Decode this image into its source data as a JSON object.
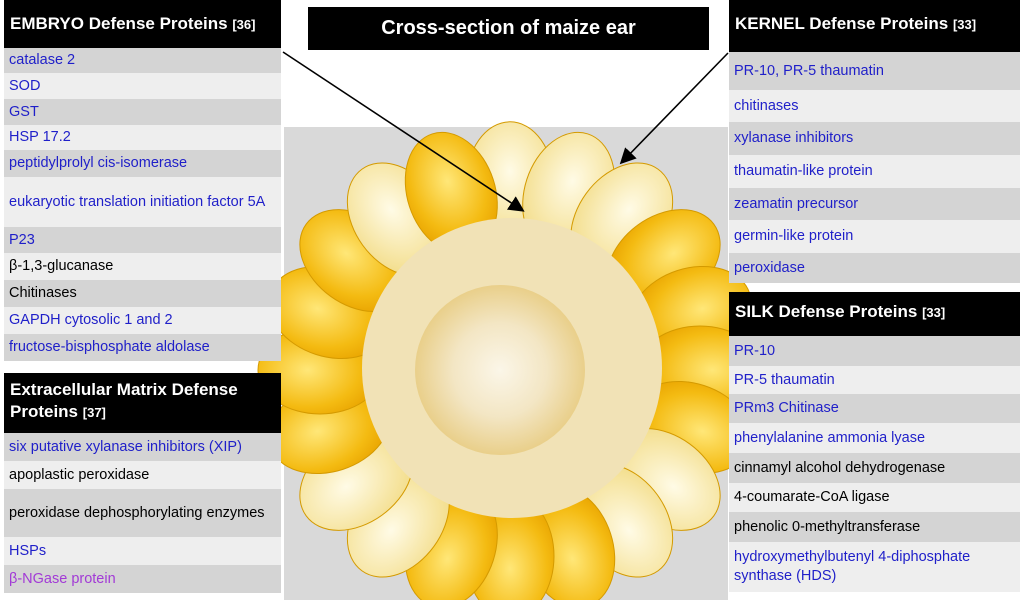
{
  "title": "Cross-section of maize ear",
  "embryo": {
    "title": "EMBRYO Defense Proteins",
    "ref": "[36]",
    "items": [
      {
        "text": "catalase 2",
        "color": "blue"
      },
      {
        "text": "SOD",
        "color": "blue"
      },
      {
        "text": "GST",
        "color": "blue"
      },
      {
        "text": "HSP 17.2",
        "color": "blue"
      },
      {
        "text": "peptidylprolyl cis-isomerase",
        "color": "blue"
      },
      {
        "text": "eukaryotic translation initiation factor 5A",
        "color": "blue"
      },
      {
        "text": "P23",
        "color": "blue"
      },
      {
        "text": "β-1,3-glucanase",
        "color": "black"
      },
      {
        "text": "Chitinases",
        "color": "black"
      },
      {
        "text": "GAPDH cytosolic 1 and 2",
        "color": "blue"
      },
      {
        "text": "fructose-bisphosphate aldolase",
        "color": "blue"
      }
    ]
  },
  "ecm": {
    "title": "Extracellular Matrix Defense Proteins",
    "ref": "[37]",
    "items": [
      {
        "text": "six putative xylanase inhibitors (XIP)",
        "color": "blue"
      },
      {
        "text": "apoplastic peroxidase",
        "color": "black"
      },
      {
        "text": "peroxidase dephosphorylating enzymes",
        "color": "black"
      },
      {
        "text": "HSPs",
        "color": "blue"
      },
      {
        "text": "β-NGase protein",
        "color": "purple"
      }
    ]
  },
  "kernel": {
    "title": "KERNEL Defense Proteins",
    "ref": "[33]",
    "items": [
      {
        "text": "PR-10, PR-5 thaumatin",
        "color": "blue"
      },
      {
        "text": "chitinases",
        "color": "blue"
      },
      {
        "text": "xylanase inhibitors",
        "color": "blue"
      },
      {
        "text": "thaumatin-like protein",
        "color": "blue"
      },
      {
        "text": "zeamatin precursor",
        "color": "blue"
      },
      {
        "text": "germin-like protein",
        "color": "blue"
      },
      {
        "text": "peroxidase",
        "color": "blue"
      }
    ]
  },
  "silk": {
    "title": "SILK Defense Proteins",
    "ref": "[33]",
    "items": [
      {
        "text": "PR-10",
        "color": "blue"
      },
      {
        "text": "PR-5 thaumatin",
        "color": "blue"
      },
      {
        "text": "PRm3 Chitinase",
        "color": "blue"
      },
      {
        "text": "phenylalanine ammonia lyase",
        "color": "blue"
      },
      {
        "text": "cinnamyl alcohol dehydrogenase",
        "color": "black"
      },
      {
        "text": "4-coumarate-CoA ligase",
        "color": "black"
      },
      {
        "text": "phenolic 0-methyltransferase",
        "color": "black"
      },
      {
        "text": "hydroxymethylbutenyl 4-diphosphate synthase (HDS)",
        "color": "blue"
      }
    ]
  },
  "colors": {
    "blue": "#1f1fc9",
    "black": "#000000",
    "purple": "#a23ad6",
    "kernel_yellow": "#f6c21a",
    "kernel_pale": "#fbedb2"
  }
}
